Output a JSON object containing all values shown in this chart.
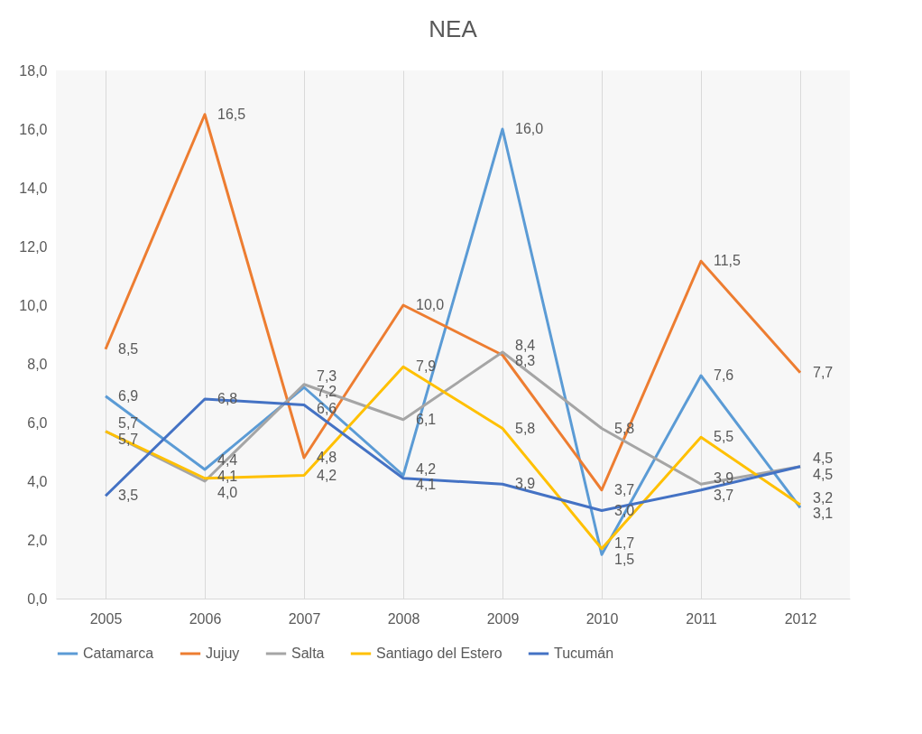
{
  "chart_data": {
    "type": "line",
    "title": "NEA",
    "categories": [
      "2005",
      "2006",
      "2007",
      "2008",
      "2009",
      "2010",
      "2011",
      "2012"
    ],
    "series": [
      {
        "name": "Catamarca",
        "color": "#5b9bd5",
        "values": [
          6.9,
          4.4,
          7.2,
          4.2,
          16.0,
          1.5,
          7.6,
          3.1
        ],
        "value_labels": [
          "6,9",
          "4,4",
          "7,2",
          "4,2",
          "16,0",
          "1,5",
          "7,6",
          "3,1"
        ]
      },
      {
        "name": "Jujuy",
        "color": "#ed7d31",
        "values": [
          8.5,
          16.5,
          4.8,
          10.0,
          8.3,
          3.7,
          11.5,
          7.7
        ],
        "value_labels": [
          "8,5",
          "16,5",
          "4,8",
          "10,0",
          "8,3",
          "3,7",
          "11,5",
          "7,7"
        ]
      },
      {
        "name": "Salta",
        "color": "#a5a5a5",
        "values": [
          5.7,
          4.0,
          7.3,
          6.1,
          8.4,
          5.8,
          3.9,
          4.5
        ],
        "value_labels": [
          "5,7",
          "4,0",
          "7,3",
          "6,1",
          "8,4",
          "5,8",
          "3,9",
          "4,5"
        ]
      },
      {
        "name": "Santiago del Estero",
        "color": "#ffc000",
        "values": [
          5.7,
          4.1,
          4.2,
          7.9,
          5.8,
          1.7,
          5.5,
          3.2
        ],
        "value_labels": [
          "5,7",
          "4,1",
          "4,2",
          "7,9",
          "5,8",
          "1,7",
          "5,5",
          "3,2"
        ]
      },
      {
        "name": "Tucumán",
        "color": "#4472c4",
        "values": [
          3.5,
          6.8,
          6.6,
          4.1,
          3.9,
          3.0,
          3.7,
          4.5
        ],
        "value_labels": [
          "3,5",
          "6,8",
          "6,6",
          "4,1",
          "3,9",
          "3,0",
          "3,7",
          "4,5"
        ]
      }
    ],
    "ylim": [
      0,
      18
    ],
    "yticks": [
      {
        "value": 0,
        "label": "0,0"
      },
      {
        "value": 2,
        "label": "2,0"
      },
      {
        "value": 4,
        "label": "4,0"
      },
      {
        "value": 6,
        "label": "6,0"
      },
      {
        "value": 8,
        "label": "8,0"
      },
      {
        "value": 10,
        "label": "10,0"
      },
      {
        "value": 12,
        "label": "12,0"
      },
      {
        "value": 14,
        "label": "14,0"
      },
      {
        "value": 16,
        "label": "16,0"
      },
      {
        "value": 18,
        "label": "18,0"
      }
    ],
    "grid": "x",
    "legend": "bottom",
    "marker": "none",
    "line_style": "solid"
  }
}
